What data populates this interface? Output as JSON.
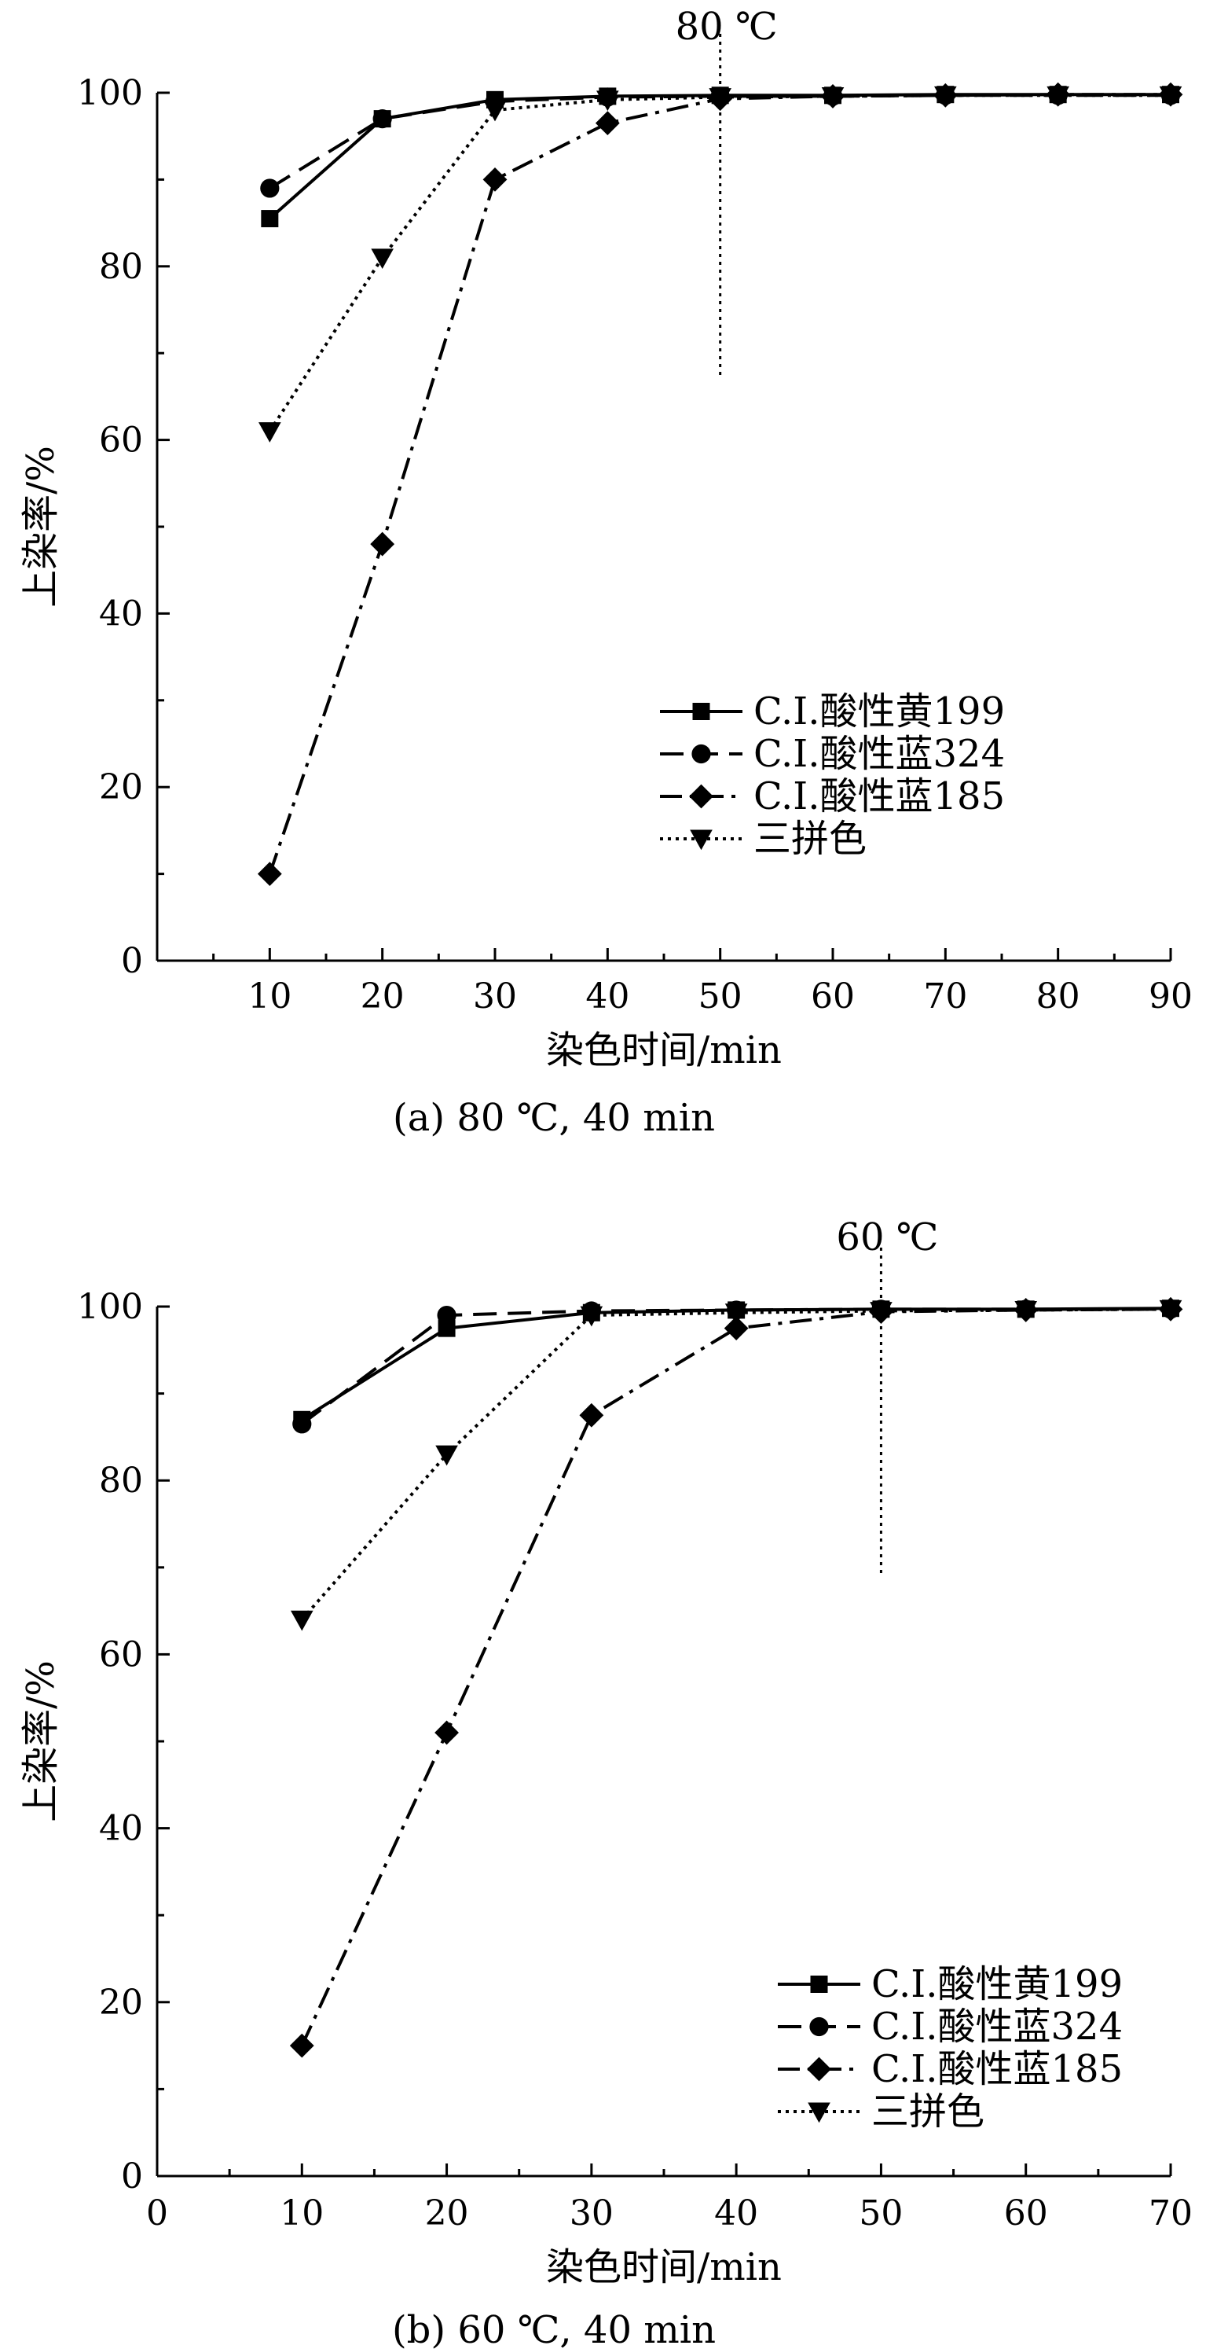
{
  "chart_data": [
    {
      "type": "line",
      "panel": "a",
      "caption": "(a) 80 ℃, 40 min",
      "xlabel": "染色时间/min",
      "ylabel": "上染率/%",
      "xlim": [
        0,
        90
      ],
      "ylim": [
        0,
        100
      ],
      "x_ticks": [
        10,
        20,
        30,
        40,
        50,
        60,
        70,
        80,
        90
      ],
      "y_ticks": [
        0,
        20,
        40,
        60,
        80,
        100
      ],
      "reference_line": {
        "x": 50,
        "y_from": 67,
        "y_to": 100,
        "label": "80 ℃"
      },
      "legend": {
        "placement": "lower-right"
      },
      "series": [
        {
          "name": "C.I.酸性黄199",
          "marker": "square",
          "dash": "solid",
          "x": [
            10,
            20,
            30,
            40,
            50,
            60,
            70,
            80,
            90
          ],
          "values": [
            85.5,
            97,
            99.2,
            99.6,
            99.7,
            99.7,
            99.8,
            99.8,
            99.8
          ]
        },
        {
          "name": "C.I.酸性蓝324",
          "marker": "circle",
          "dash": "dashed",
          "x": [
            10,
            20,
            30,
            40,
            50,
            60,
            70,
            80,
            90
          ],
          "values": [
            89,
            97,
            99,
            99.5,
            99.6,
            99.6,
            99.7,
            99.7,
            99.7
          ]
        },
        {
          "name": "C.I.酸性蓝185",
          "marker": "diamond",
          "dash": "dashdot",
          "x": [
            10,
            20,
            30,
            40,
            50,
            60,
            70,
            80,
            90
          ],
          "values": [
            10,
            48,
            90,
            96.5,
            99.3,
            99.6,
            99.7,
            99.8,
            99.8
          ]
        },
        {
          "name": "三拼色",
          "marker": "triangle-down",
          "dash": "dotted",
          "x": [
            10,
            20,
            30,
            40,
            50,
            60,
            70,
            80,
            90
          ],
          "values": [
            61,
            81,
            98,
            99.2,
            99.5,
            99.6,
            99.7,
            99.7,
            99.7
          ]
        }
      ]
    },
    {
      "type": "line",
      "panel": "b",
      "caption": "(b) 60 ℃, 40 min",
      "xlabel": "染色时间/min",
      "ylabel": "上染率/%",
      "xlim": [
        0,
        70
      ],
      "ylim": [
        0,
        100
      ],
      "x_ticks": [
        0,
        10,
        20,
        30,
        40,
        50,
        60,
        70
      ],
      "y_ticks": [
        0,
        20,
        40,
        60,
        80,
        100
      ],
      "reference_line": {
        "x": 50,
        "y_from": 69,
        "y_to": 100,
        "label": "60 ℃"
      },
      "legend": {
        "placement": "lower-right"
      },
      "series": [
        {
          "name": "C.I.酸性黄199",
          "marker": "square",
          "dash": "solid",
          "x": [
            10,
            20,
            30,
            40,
            50,
            60,
            70
          ],
          "values": [
            87,
            97.5,
            99.3,
            99.6,
            99.7,
            99.7,
            99.8
          ]
        },
        {
          "name": "C.I.酸性蓝324",
          "marker": "circle",
          "dash": "dashed",
          "x": [
            10,
            20,
            30,
            40,
            50,
            60,
            70
          ],
          "values": [
            86.5,
            99,
            99.5,
            99.6,
            99.7,
            99.7,
            99.7
          ]
        },
        {
          "name": "C.I.酸性蓝185",
          "marker": "diamond",
          "dash": "dashdot",
          "x": [
            10,
            20,
            30,
            40,
            50,
            60,
            70
          ],
          "values": [
            15,
            51,
            87.5,
            97.5,
            99.4,
            99.6,
            99.7
          ]
        },
        {
          "name": "三拼色",
          "marker": "triangle-down",
          "dash": "dotted",
          "x": [
            10,
            20,
            30,
            40,
            50,
            60,
            70
          ],
          "values": [
            64,
            83,
            99,
            99.3,
            99.5,
            99.6,
            99.7
          ]
        }
      ]
    }
  ]
}
